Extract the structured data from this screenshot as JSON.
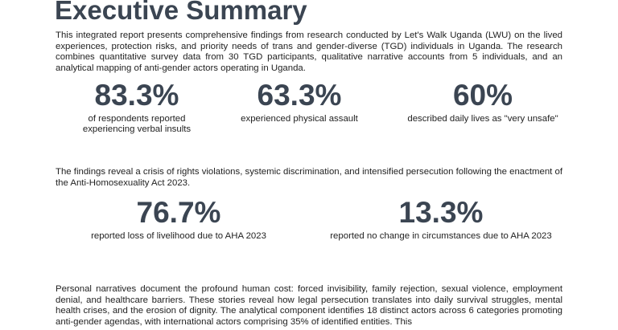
{
  "header": {
    "title": "Executive Summary"
  },
  "intro": "This integrated report presents comprehensive findings from research conducted by Let's Walk Uganda (LWU) on the lived experiences, protection risks, and priority needs of trans and gender-diverse (TGD) individuals in Uganda. The research combines quantitative survey data from 30 TGD participants, qualitative narrative accounts from 5 individuals, and an analytical mapping of anti-gender actors operating in Uganda.",
  "stats_1": [
    {
      "value": "83.3%",
      "label": "of respondents reported experiencing verbal insults"
    },
    {
      "value": "63.3%",
      "label": "experienced physical assault"
    },
    {
      "value": "60%",
      "label": "described daily lives as \"very unsafe\""
    }
  ],
  "findings": "The findings reveal a crisis of rights violations, systemic discrimination, and intensified persecution following the enactment of the Anti-Homosexuality Act 2023.",
  "stats_2": [
    {
      "value": "76.7%",
      "label": "reported loss of livelihood due to AHA 2023"
    },
    {
      "value": "13.3%",
      "label": "reported no change in circumstances due to AHA 2023"
    }
  ],
  "narratives": "Personal narratives document the profound human cost: forced invisibility, family rejection, sexual violence, employment denial, and healthcare barriers. These stories reveal how legal persecution translates into daily survival struggles, mental health crises, and the erosion of dignity. The analytical component identifies 18 distinct actors across 6 categories promoting anti-gender agendas, with international actors comprising 35% of identified entities. This"
}
